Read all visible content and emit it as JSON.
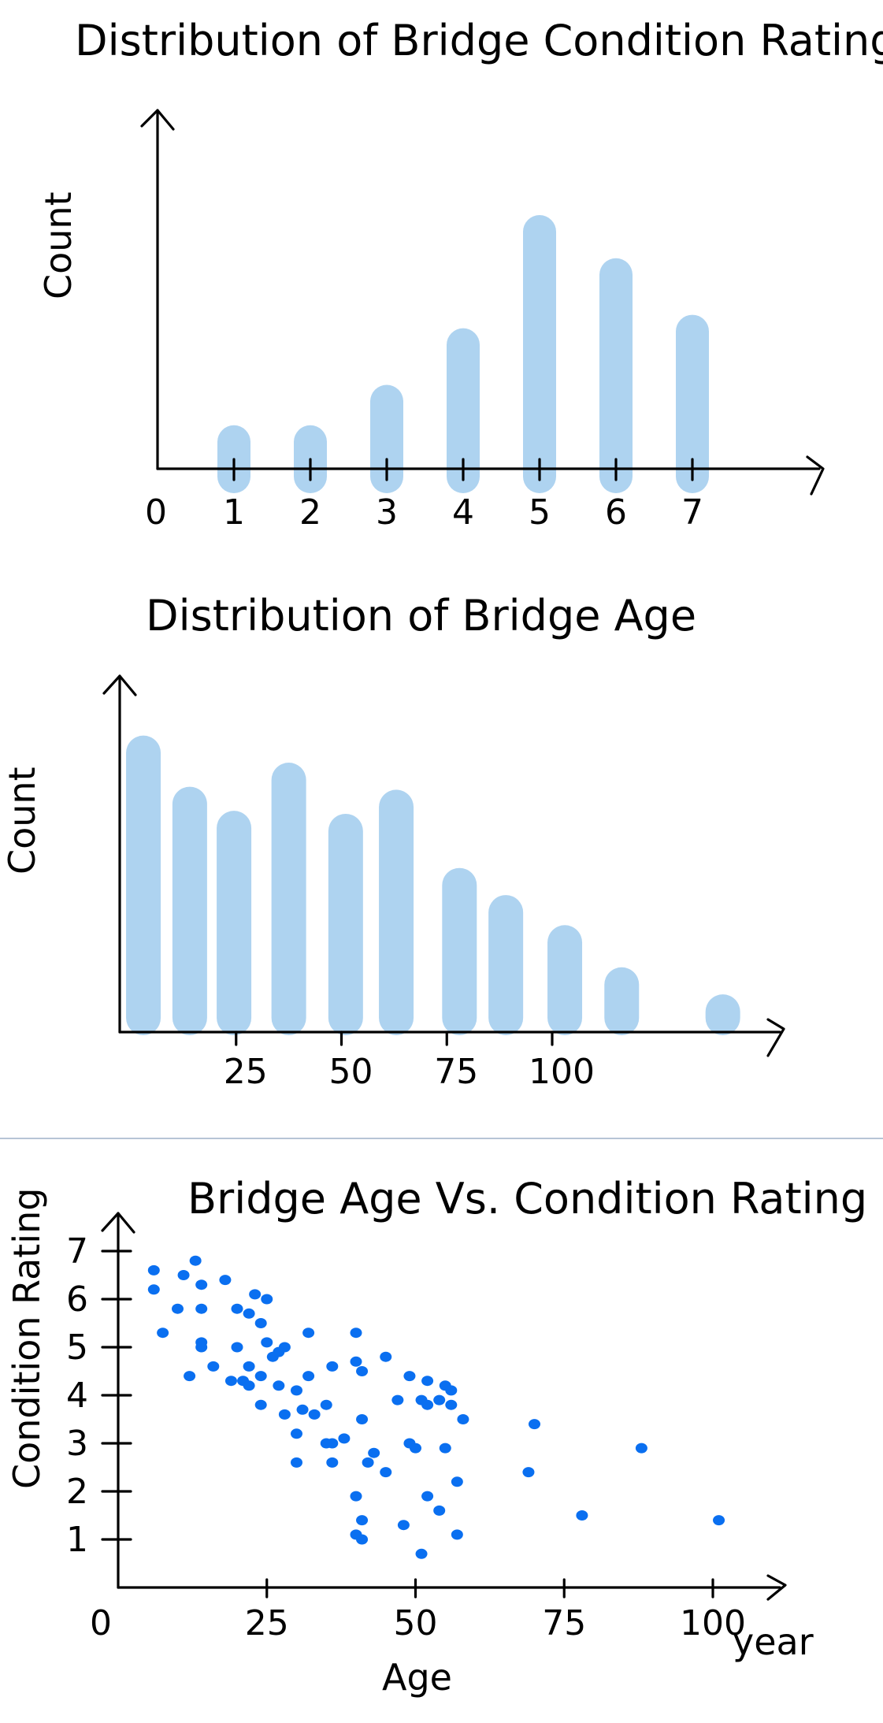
{
  "chart_data": [
    {
      "type": "bar",
      "title": "Distribution of Bridge Condition Rating",
      "xlabel": "",
      "ylabel": "Count",
      "x_ticks": [
        "0",
        "1",
        "2",
        "3",
        "4",
        "5",
        "6",
        "7"
      ],
      "categories": [
        "1",
        "2",
        "3",
        "4",
        "5",
        "6",
        "7"
      ],
      "values": [
        1,
        1,
        2.5,
        4.6,
        8.8,
        7.2,
        5.1
      ],
      "bar_color": "#aed3f0",
      "grid": false
    },
    {
      "type": "bar",
      "title": "Distribution of Bridge Age",
      "xlabel": "",
      "ylabel": "Count",
      "x_ticks": [
        "25",
        "50",
        "75",
        "100"
      ],
      "values": [
        9.8,
        8.1,
        7.3,
        8.9,
        7.2,
        8.0,
        5.4,
        4.5,
        3.5,
        2.1,
        1.2
      ],
      "xlim": [
        0,
        140
      ],
      "bin_centers": [
        3,
        14,
        24.5,
        37.5,
        51,
        63,
        78,
        89,
        103,
        116.5,
        140.5
      ],
      "bar_color": "#aed3f0",
      "grid": false
    },
    {
      "type": "scatter",
      "title": "Bridge Age Vs. Condition Rating",
      "xlabel": "Age",
      "ylabel": "Condition Rating",
      "x_unit_label": "year",
      "x_ticks": [
        "0",
        "25",
        "50",
        "75",
        "100"
      ],
      "y_ticks": [
        "1",
        "2",
        "3",
        "4",
        "5",
        "6",
        "7"
      ],
      "xlim": [
        0,
        112
      ],
      "ylim": [
        0,
        7.4
      ],
      "point_color": "#0a6ff0",
      "grid": false,
      "points": [
        [
          6,
          6.6
        ],
        [
          6,
          6.2
        ],
        [
          11,
          6.5
        ],
        [
          13,
          6.8
        ],
        [
          14,
          6.3
        ],
        [
          18,
          6.4
        ],
        [
          23,
          6.1
        ],
        [
          25,
          6.0
        ],
        [
          7.5,
          5.3
        ],
        [
          10,
          5.8
        ],
        [
          14,
          5.8
        ],
        [
          14,
          5.1
        ],
        [
          20,
          5.8
        ],
        [
          22,
          5.7
        ],
        [
          24,
          5.5
        ],
        [
          25,
          5.1
        ],
        [
          28,
          5.0
        ],
        [
          32,
          5.3
        ],
        [
          14,
          5.0
        ],
        [
          20,
          5.0
        ],
        [
          26,
          4.8
        ],
        [
          27,
          4.9
        ],
        [
          12,
          4.4
        ],
        [
          16,
          4.6
        ],
        [
          19,
          4.3
        ],
        [
          21,
          4.3
        ],
        [
          22,
          4.6
        ],
        [
          24,
          4.4
        ],
        [
          22,
          4.2
        ],
        [
          27,
          4.2
        ],
        [
          24,
          3.8
        ],
        [
          30,
          4.1
        ],
        [
          32,
          4.4
        ],
        [
          36,
          4.6
        ],
        [
          40,
          4.7
        ],
        [
          40,
          5.3
        ],
        [
          41,
          4.5
        ],
        [
          45,
          4.8
        ],
        [
          49,
          4.4
        ],
        [
          52,
          4.3
        ],
        [
          51,
          3.9
        ],
        [
          55,
          4.2
        ],
        [
          56,
          4.1
        ],
        [
          47,
          3.9
        ],
        [
          52,
          3.8
        ],
        [
          54,
          3.9
        ],
        [
          56,
          3.8
        ],
        [
          58,
          3.5
        ],
        [
          28,
          3.6
        ],
        [
          31,
          3.7
        ],
        [
          33,
          3.6
        ],
        [
          35,
          3.8
        ],
        [
          30,
          3.2
        ],
        [
          35,
          3.0
        ],
        [
          36,
          3.0
        ],
        [
          38,
          3.1
        ],
        [
          30,
          2.6
        ],
        [
          36,
          2.6
        ],
        [
          41,
          3.5
        ],
        [
          43,
          2.8
        ],
        [
          45,
          2.4
        ],
        [
          49,
          3.0
        ],
        [
          50,
          2.9
        ],
        [
          55,
          2.9
        ],
        [
          42,
          2.6
        ],
        [
          57,
          2.2
        ],
        [
          70,
          3.4
        ],
        [
          69,
          2.4
        ],
        [
          40,
          1.9
        ],
        [
          52,
          1.9
        ],
        [
          54,
          1.6
        ],
        [
          41,
          1.4
        ],
        [
          48,
          1.3
        ],
        [
          78,
          1.5
        ],
        [
          88,
          2.9
        ],
        [
          101,
          1.4
        ],
        [
          40,
          1.1
        ],
        [
          41,
          1.0
        ],
        [
          51,
          0.7
        ],
        [
          57,
          1.1
        ]
      ]
    }
  ]
}
